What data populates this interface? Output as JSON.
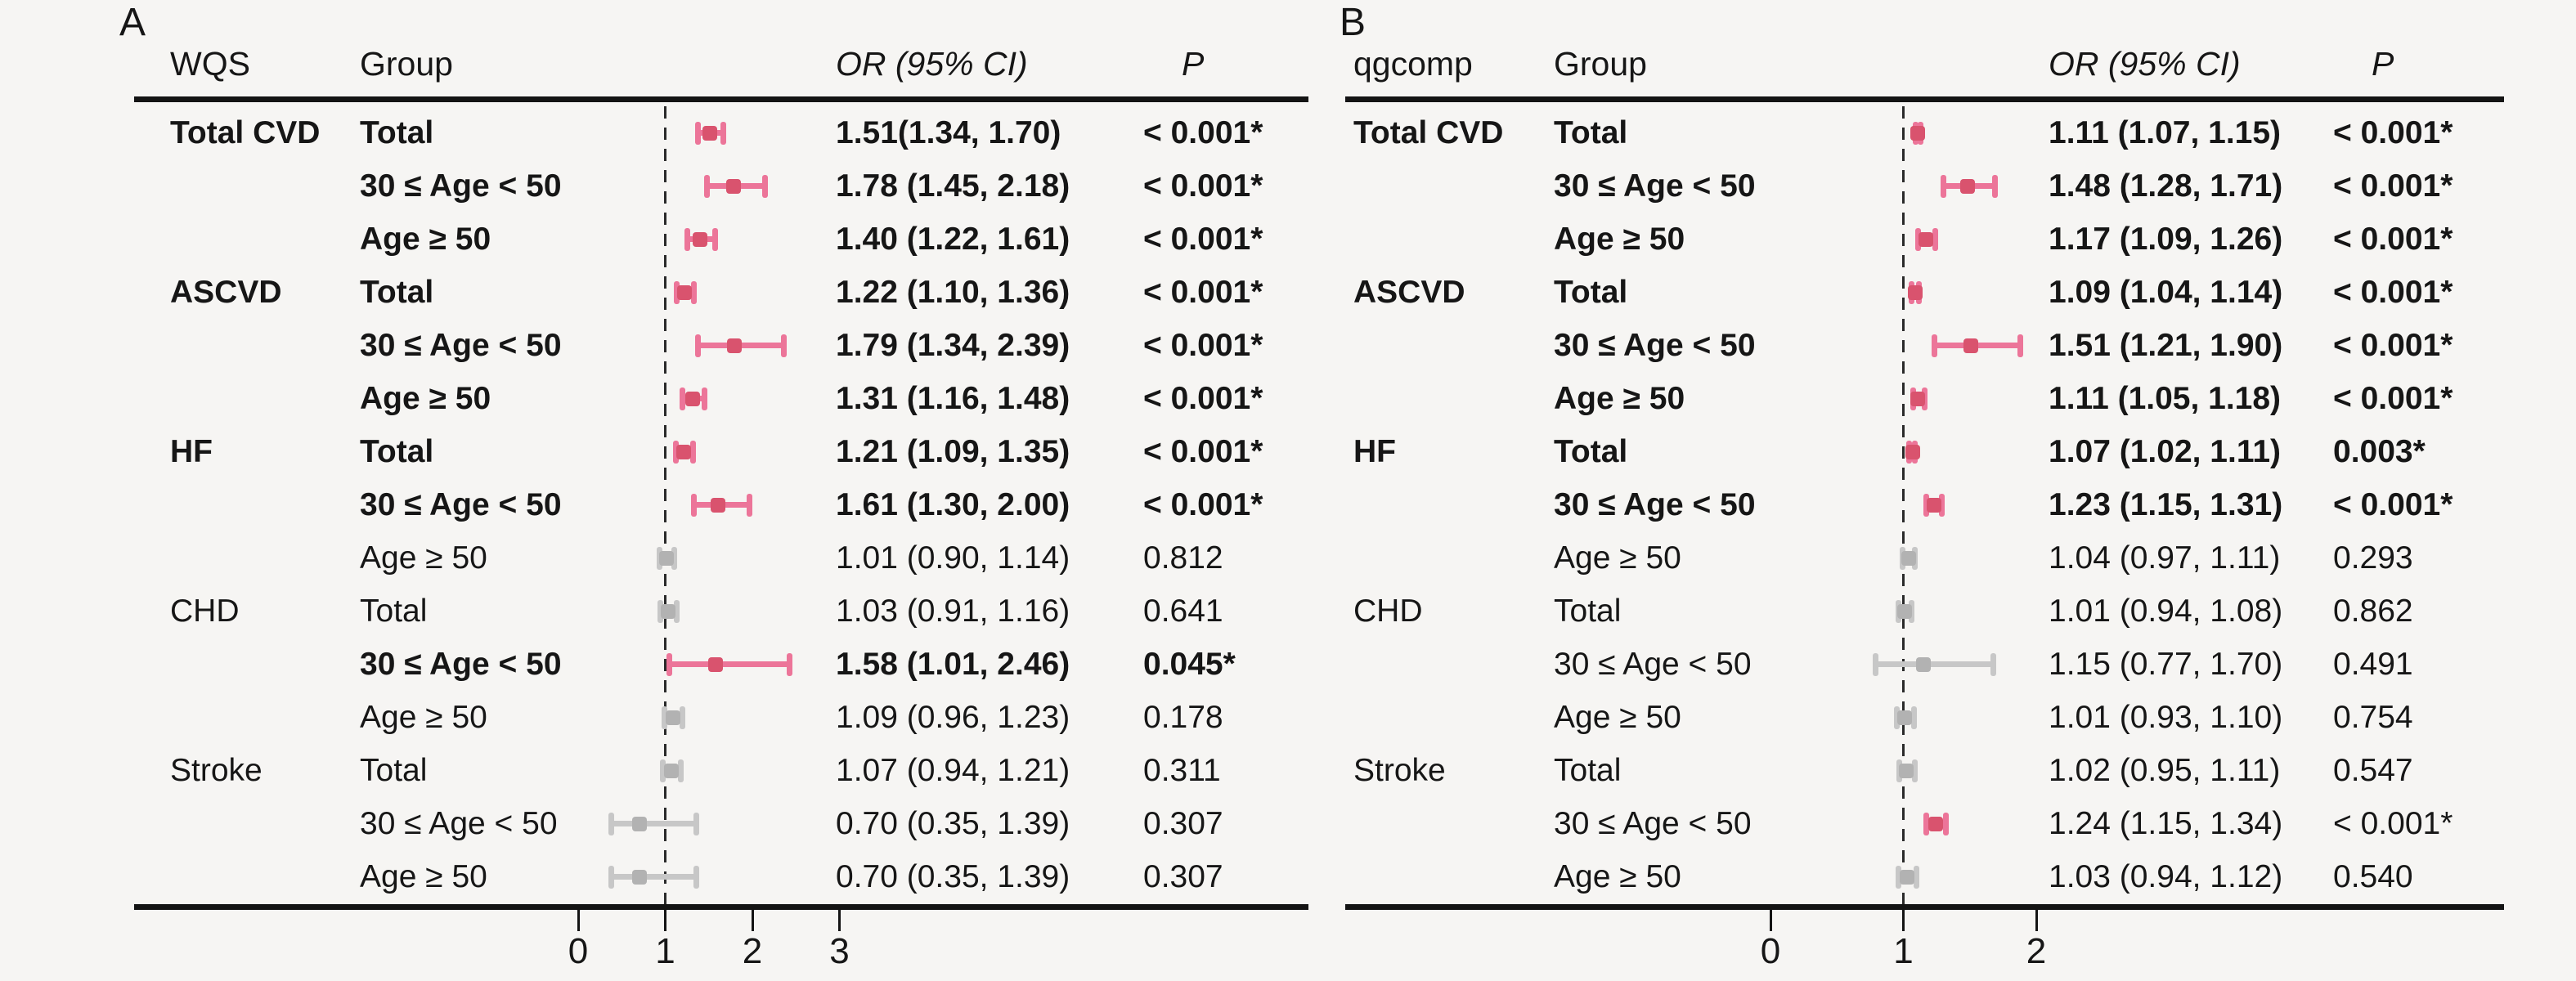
{
  "chart_data": {
    "type": "scatter",
    "variant": "forest-plot",
    "x_reference_line": 1,
    "colors": {
      "background": "#f6f5f3",
      "text": "#161616",
      "axis_line": "#141414",
      "significant_bar": "#ec7599",
      "significant_point": "#d9536e",
      "nonsignificant_bar": "#c7c7c7",
      "nonsignificant_point": "#b2b2b2"
    },
    "panels": [
      {
        "label": "A",
        "headers": {
          "method": "WQS",
          "group": "Group",
          "or_ci": "OR (95% CI)",
          "p": "P"
        },
        "x_axis": {
          "ticks": [
            "0",
            "1",
            "2",
            "3"
          ],
          "min": 0,
          "max": 3
        },
        "rows": [
          {
            "outcome": "Total CVD",
            "group": "Total",
            "or_ci": "1.51(1.34, 1.70)",
            "p": "< 0.001*",
            "or": 1.51,
            "lo": 1.34,
            "hi": 1.7,
            "significant": true,
            "bold": true
          },
          {
            "outcome": "",
            "group": "30 ≤ Age < 50",
            "or_ci": "1.78 (1.45, 2.18)",
            "p": "< 0.001*",
            "or": 1.78,
            "lo": 1.45,
            "hi": 2.18,
            "significant": true,
            "bold": true
          },
          {
            "outcome": "",
            "group": "Age ≥ 50",
            "or_ci": "1.40 (1.22, 1.61)",
            "p": "< 0.001*",
            "or": 1.4,
            "lo": 1.22,
            "hi": 1.61,
            "significant": true,
            "bold": true
          },
          {
            "outcome": "ASCVD",
            "group": "Total",
            "or_ci": "1.22 (1.10, 1.36)",
            "p": "< 0.001*",
            "or": 1.22,
            "lo": 1.1,
            "hi": 1.36,
            "significant": true,
            "bold": true
          },
          {
            "outcome": "",
            "group": "30 ≤ Age < 50",
            "or_ci": "1.79 (1.34, 2.39)",
            "p": "< 0.001*",
            "or": 1.79,
            "lo": 1.34,
            "hi": 2.39,
            "significant": true,
            "bold": true
          },
          {
            "outcome": "",
            "group": "Age ≥ 50",
            "or_ci": "1.31 (1.16, 1.48)",
            "p": "< 0.001*",
            "or": 1.31,
            "lo": 1.16,
            "hi": 1.48,
            "significant": true,
            "bold": true
          },
          {
            "outcome": "HF",
            "group": "Total",
            "or_ci": "1.21 (1.09, 1.35)",
            "p": "< 0.001*",
            "or": 1.21,
            "lo": 1.09,
            "hi": 1.35,
            "significant": true,
            "bold": true
          },
          {
            "outcome": "",
            "group": "30 ≤ Age < 50",
            "or_ci": "1.61 (1.30, 2.00)",
            "p": "< 0.001*",
            "or": 1.61,
            "lo": 1.3,
            "hi": 2.0,
            "significant": true,
            "bold": true
          },
          {
            "outcome": "",
            "group": "Age ≥ 50",
            "or_ci": "1.01 (0.90, 1.14)",
            "p": "0.812",
            "or": 1.01,
            "lo": 0.9,
            "hi": 1.14,
            "significant": false,
            "bold": false
          },
          {
            "outcome": "CHD",
            "group": "Total",
            "or_ci": "1.03 (0.91, 1.16)",
            "p": "0.641",
            "or": 1.03,
            "lo": 0.91,
            "hi": 1.16,
            "significant": false,
            "bold": false
          },
          {
            "outcome": "",
            "group": "30 ≤ Age < 50",
            "or_ci": "1.58 (1.01, 2.46)",
            "p": "0.045*",
            "or": 1.58,
            "lo": 1.01,
            "hi": 2.46,
            "significant": true,
            "bold": true
          },
          {
            "outcome": "",
            "group": "Age ≥ 50",
            "or_ci": "1.09 (0.96, 1.23)",
            "p": "0.178",
            "or": 1.09,
            "lo": 0.96,
            "hi": 1.23,
            "significant": false,
            "bold": false
          },
          {
            "outcome": "Stroke",
            "group": "Total",
            "or_ci": "1.07 (0.94, 1.21)",
            "p": "0.311",
            "or": 1.07,
            "lo": 0.94,
            "hi": 1.21,
            "significant": false,
            "bold": false
          },
          {
            "outcome": "",
            "group": "30 ≤ Age < 50",
            "or_ci": "0.70 (0.35, 1.39)",
            "p": "0.307",
            "or": 0.7,
            "lo": 0.35,
            "hi": 1.39,
            "significant": false,
            "bold": false
          },
          {
            "outcome": "",
            "group": "Age ≥ 50",
            "or_ci": "0.70 (0.35, 1.39)",
            "p": "0.307",
            "or": 0.7,
            "lo": 0.35,
            "hi": 1.39,
            "significant": false,
            "bold": false
          }
        ]
      },
      {
        "label": "B",
        "headers": {
          "method": "qgcomp",
          "group": "Group",
          "or_ci": "OR (95% CI)",
          "p": "P"
        },
        "x_axis": {
          "ticks": [
            "0",
            "1",
            "2"
          ],
          "min": 0,
          "max": 2
        },
        "rows": [
          {
            "outcome": "Total CVD",
            "group": "Total",
            "or_ci": "1.11 (1.07, 1.15)",
            "p": "< 0.001*",
            "or": 1.11,
            "lo": 1.07,
            "hi": 1.15,
            "significant": true,
            "bold": true
          },
          {
            "outcome": "",
            "group": "30 ≤ Age < 50",
            "or_ci": "1.48 (1.28, 1.71)",
            "p": "< 0.001*",
            "or": 1.48,
            "lo": 1.28,
            "hi": 1.71,
            "significant": true,
            "bold": true
          },
          {
            "outcome": "",
            "group": "Age ≥ 50",
            "or_ci": "1.17 (1.09, 1.26)",
            "p": "< 0.001*",
            "or": 1.17,
            "lo": 1.09,
            "hi": 1.26,
            "significant": true,
            "bold": true
          },
          {
            "outcome": "ASCVD",
            "group": "Total",
            "or_ci": "1.09 (1.04, 1.14)",
            "p": "< 0.001*",
            "or": 1.09,
            "lo": 1.04,
            "hi": 1.14,
            "significant": true,
            "bold": true
          },
          {
            "outcome": "",
            "group": "30 ≤ Age < 50",
            "or_ci": "1.51 (1.21, 1.90)",
            "p": "< 0.001*",
            "or": 1.51,
            "lo": 1.21,
            "hi": 1.9,
            "significant": true,
            "bold": true
          },
          {
            "outcome": "",
            "group": "Age ≥ 50",
            "or_ci": "1.11 (1.05, 1.18)",
            "p": "< 0.001*",
            "or": 1.11,
            "lo": 1.05,
            "hi": 1.18,
            "significant": true,
            "bold": true
          },
          {
            "outcome": "HF",
            "group": "Total",
            "or_ci": "1.07 (1.02, 1.11)",
            "p": "0.003*",
            "or": 1.07,
            "lo": 1.02,
            "hi": 1.11,
            "significant": true,
            "bold": true
          },
          {
            "outcome": "",
            "group": "30 ≤ Age < 50",
            "or_ci": "1.23 (1.15, 1.31)",
            "p": "< 0.001*",
            "or": 1.23,
            "lo": 1.15,
            "hi": 1.31,
            "significant": true,
            "bold": true
          },
          {
            "outcome": "",
            "group": "Age ≥ 50",
            "or_ci": "1.04 (0.97, 1.11)",
            "p": "0.293",
            "or": 1.04,
            "lo": 0.97,
            "hi": 1.11,
            "significant": false,
            "bold": false
          },
          {
            "outcome": "CHD",
            "group": "Total",
            "or_ci": "1.01 (0.94, 1.08)",
            "p": "0.862",
            "or": 1.01,
            "lo": 0.94,
            "hi": 1.08,
            "significant": false,
            "bold": false
          },
          {
            "outcome": "",
            "group": "30 ≤ Age < 50",
            "or_ci": "1.15 (0.77, 1.70)",
            "p": "0.491",
            "or": 1.15,
            "lo": 0.77,
            "hi": 1.7,
            "significant": false,
            "bold": false
          },
          {
            "outcome": "",
            "group": "Age ≥ 50",
            "or_ci": "1.01 (0.93, 1.10)",
            "p": "0.754",
            "or": 1.01,
            "lo": 0.93,
            "hi": 1.1,
            "significant": false,
            "bold": false
          },
          {
            "outcome": "Stroke",
            "group": "Total",
            "or_ci": "1.02 (0.95, 1.11)",
            "p": "0.547",
            "or": 1.02,
            "lo": 0.95,
            "hi": 1.11,
            "significant": false,
            "bold": false
          },
          {
            "outcome": "",
            "group": "30 ≤ Age < 50",
            "or_ci": "1.24 (1.15, 1.34)",
            "p": "< 0.001*",
            "or": 1.24,
            "lo": 1.15,
            "hi": 1.34,
            "significant": true,
            "bold": false
          },
          {
            "outcome": "",
            "group": "Age ≥ 50",
            "or_ci": "1.03 (0.94, 1.12)",
            "p": "0.540",
            "or": 1.03,
            "lo": 0.94,
            "hi": 1.12,
            "significant": false,
            "bold": false
          }
        ]
      }
    ]
  }
}
